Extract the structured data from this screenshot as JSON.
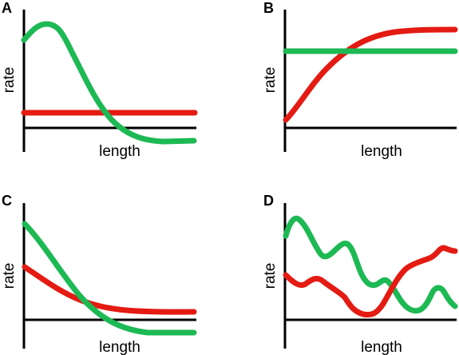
{
  "colors": {
    "green": "#1db954",
    "red": "#e41b13",
    "axis": "#000000"
  },
  "panels": [
    {
      "letter": "A",
      "xlabel": "length",
      "ylabel": "rate"
    },
    {
      "letter": "B",
      "xlabel": "length",
      "ylabel": "rate"
    },
    {
      "letter": "C",
      "xlabel": "length",
      "ylabel": "rate"
    },
    {
      "letter": "D",
      "xlabel": "length",
      "ylabel": "rate"
    }
  ]
}
